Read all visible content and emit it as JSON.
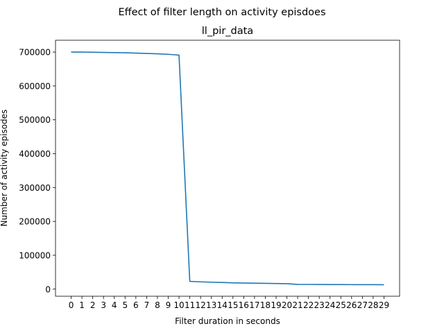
{
  "chart_data": {
    "type": "line",
    "suptitle": "Effect of filter length on activity episdoes",
    "title": "ll_pir_data",
    "xlabel": "Filter duration in seconds",
    "ylabel": "Number of activity episodes",
    "x": [
      0,
      1,
      2,
      3,
      4,
      5,
      6,
      7,
      8,
      9,
      10,
      11,
      12,
      13,
      14,
      15,
      16,
      17,
      18,
      19,
      20,
      21,
      22,
      23,
      24,
      25,
      26,
      27,
      28,
      29
    ],
    "xticks": [
      "0",
      "1",
      "2",
      "3",
      "4",
      "5",
      "6",
      "7",
      "8",
      "9",
      "10",
      "11",
      "12",
      "13",
      "14",
      "15",
      "16",
      "17",
      "18",
      "19",
      "20",
      "21",
      "22",
      "23",
      "24",
      "25",
      "26",
      "27",
      "28",
      "29"
    ],
    "series": [
      {
        "values": [
          700000,
          700000,
          699500,
          699000,
          698500,
          698000,
          697000,
          696000,
          695000,
          693500,
          691000,
          23000,
          21500,
          20500,
          19500,
          18500,
          18000,
          17500,
          17000,
          16500,
          16000,
          14000,
          13800,
          13600,
          13500,
          13400,
          13300,
          13200,
          13100,
          13000
        ],
        "color": "#1f77b4"
      }
    ],
    "yticks": [
      0,
      100000,
      200000,
      300000,
      400000,
      500000,
      600000,
      700000
    ],
    "ytick_labels": [
      "0",
      "100000",
      "200000",
      "300000",
      "400000",
      "500000",
      "600000",
      "700000"
    ],
    "xlim": [
      -1.45,
      30.45
    ],
    "ylim": [
      -21000,
      735000
    ],
    "grid": false
  }
}
